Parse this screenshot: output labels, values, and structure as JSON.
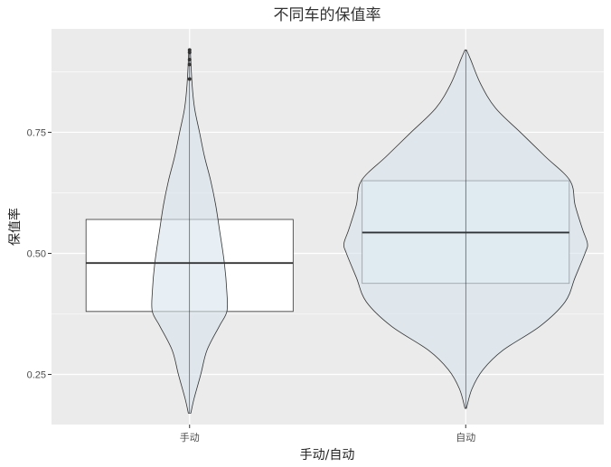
{
  "chart_data": {
    "type": "violin+box",
    "title": "不同车的保值率",
    "xlabel": "手动/自动",
    "ylabel": "保值率",
    "categories": [
      "手动",
      "自动"
    ],
    "ylim": [
      0.1465,
      0.9635
    ],
    "yticks": [
      0.25,
      0.5,
      0.75
    ],
    "ytick_labels": [
      "0.25",
      "0.50",
      "0.75"
    ],
    "grid": true,
    "legend": "none",
    "colors": {
      "panel": "#ebebeb",
      "grid_major": "#ffffff",
      "violin_fill": "#d8e4ed",
      "box_fill_manual": "#ffffff",
      "box_fill_auto": "#e9f2f8",
      "outline": "#333333",
      "median": "#333333"
    },
    "boxes": [
      {
        "category": "手动",
        "q1": 0.38,
        "median": 0.48,
        "q3": 0.57
      },
      {
        "category": "自动",
        "q1": 0.438,
        "median": 0.543,
        "q3": 0.65
      }
    ],
    "outliers": [
      {
        "category": "手动",
        "y": [
          0.86,
          0.89,
          0.9,
          0.915,
          0.92
        ]
      }
    ],
    "violins": [
      {
        "category": "手动",
        "y_min": 0.17,
        "y_max": 0.92,
        "profile": [
          [
            0.17,
            0.005
          ],
          [
            0.2,
            0.018
          ],
          [
            0.25,
            0.045
          ],
          [
            0.3,
            0.07
          ],
          [
            0.35,
            0.12
          ],
          [
            0.38,
            0.15
          ],
          [
            0.42,
            0.15
          ],
          [
            0.48,
            0.14
          ],
          [
            0.55,
            0.12
          ],
          [
            0.6,
            0.105
          ],
          [
            0.65,
            0.085
          ],
          [
            0.7,
            0.06
          ],
          [
            0.75,
            0.04
          ],
          [
            0.8,
            0.02
          ],
          [
            0.85,
            0.01
          ],
          [
            0.92,
            0.003
          ]
        ]
      },
      {
        "category": "自动",
        "y_min": 0.18,
        "y_max": 0.92,
        "profile": [
          [
            0.18,
            0.003
          ],
          [
            0.22,
            0.025
          ],
          [
            0.26,
            0.07
          ],
          [
            0.3,
            0.15
          ],
          [
            0.35,
            0.3
          ],
          [
            0.4,
            0.4
          ],
          [
            0.45,
            0.44
          ],
          [
            0.5,
            0.48
          ],
          [
            0.52,
            0.49
          ],
          [
            0.55,
            0.47
          ],
          [
            0.6,
            0.44
          ],
          [
            0.65,
            0.42
          ],
          [
            0.7,
            0.32
          ],
          [
            0.75,
            0.22
          ],
          [
            0.8,
            0.12
          ],
          [
            0.85,
            0.06
          ],
          [
            0.9,
            0.02
          ],
          [
            0.92,
            0.003
          ]
        ]
      }
    ]
  }
}
